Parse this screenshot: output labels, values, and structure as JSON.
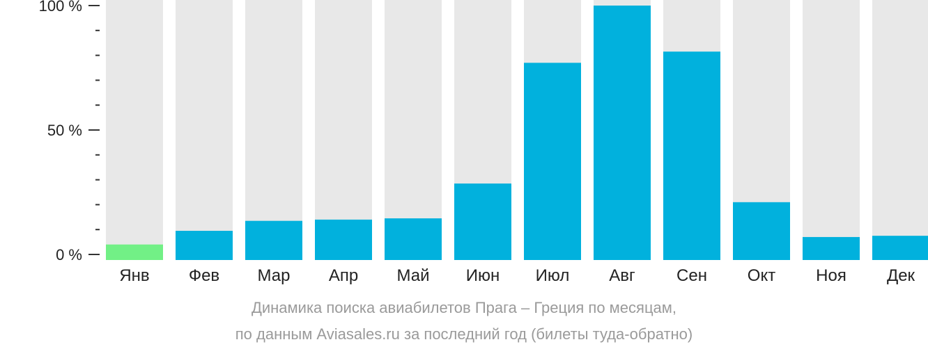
{
  "chart_data": {
    "type": "bar",
    "categories": [
      "Янв",
      "Фев",
      "Мар",
      "Апр",
      "Май",
      "Июн",
      "Июл",
      "Авг",
      "Сен",
      "Окт",
      "Ноя",
      "Дек"
    ],
    "values": [
      4,
      9.5,
      13.5,
      14,
      14.5,
      28.5,
      77,
      100,
      81.5,
      21,
      7,
      7.5
    ],
    "ylim": [
      0,
      100
    ],
    "yticks": [
      "0 %",
      "50 %",
      "100 %"
    ],
    "highlight_index": 0,
    "colors": {
      "bar": "#01b1dd",
      "highlight": "#72f086",
      "track": "#e8e8e8"
    },
    "caption_line1": "Динамика поиска авиабилетов Прага – Греция по месяцам,",
    "caption_line2": "по данным Aviasales.ru за последний год (билеты туда-обратно)"
  }
}
